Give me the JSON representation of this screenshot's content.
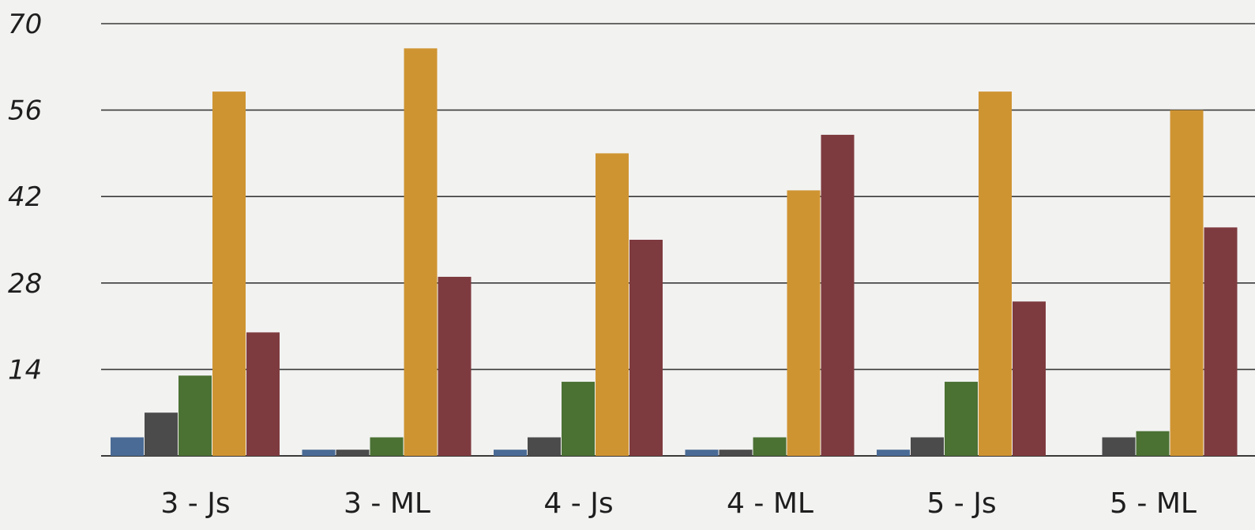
{
  "chart_data": {
    "type": "bar",
    "categories": [
      "3 - Js",
      "3 - ML",
      "4 - Js",
      "4 - ML",
      "5 - Js",
      "5 - ML"
    ],
    "series": [
      {
        "color": "#4a6b95",
        "values": [
          3,
          1,
          1,
          1,
          1,
          0
        ]
      },
      {
        "color": "#4b4b4b",
        "values": [
          7,
          1,
          3,
          1,
          3,
          3
        ]
      },
      {
        "color": "#4b7133",
        "values": [
          13,
          3,
          12,
          3,
          12,
          4
        ]
      },
      {
        "color": "#cf9432",
        "values": [
          59,
          66,
          49,
          43,
          59,
          56
        ]
      },
      {
        "color": "#7e3b3f",
        "values": [
          20,
          29,
          35,
          52,
          25,
          37
        ]
      }
    ],
    "yticks": [
      "0",
      "14",
      "28",
      "42",
      "56",
      "70"
    ],
    "ylim": [
      0,
      70
    ],
    "grid": true,
    "legend": "none"
  }
}
